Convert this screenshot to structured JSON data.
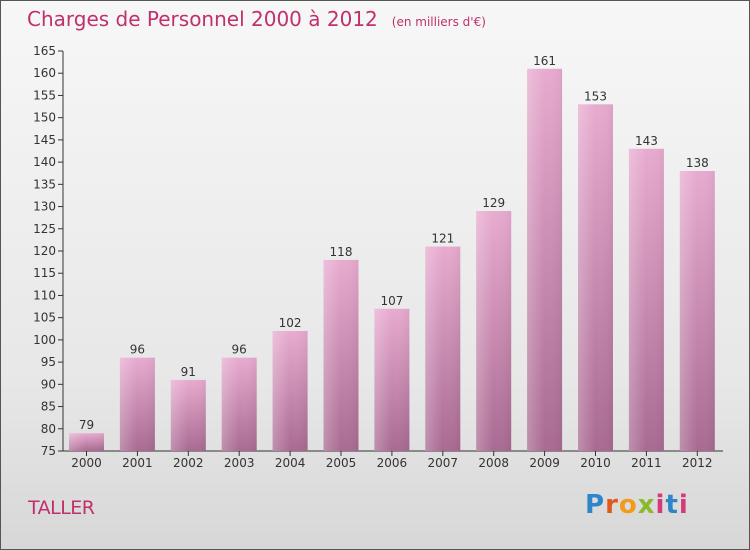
{
  "title": "Charges de Personnel 2000 à 2012",
  "subtitle": "(en milliers d'€)",
  "commune": "TALLER",
  "logo": {
    "p": "P",
    "r": "r",
    "o": "o",
    "x": "x",
    "i": "i",
    "t": "t",
    "i2": "i"
  },
  "colors": {
    "title": "#c0306d",
    "bar_top": "#e8abd0",
    "bar_bottom": "#a96a92",
    "axis": "#333333"
  },
  "chart_data": {
    "type": "bar",
    "categories": [
      "2000",
      "2001",
      "2002",
      "2003",
      "2004",
      "2005",
      "2006",
      "2007",
      "2008",
      "2009",
      "2010",
      "2011",
      "2012"
    ],
    "values": [
      79,
      96,
      91,
      96,
      102,
      118,
      107,
      121,
      129,
      161,
      153,
      143,
      138
    ],
    "ylim": [
      75,
      165
    ],
    "yticks": [
      75,
      80,
      85,
      90,
      95,
      100,
      105,
      110,
      115,
      120,
      125,
      130,
      135,
      140,
      145,
      150,
      155,
      160,
      165
    ],
    "grid": false,
    "legend": "none"
  }
}
